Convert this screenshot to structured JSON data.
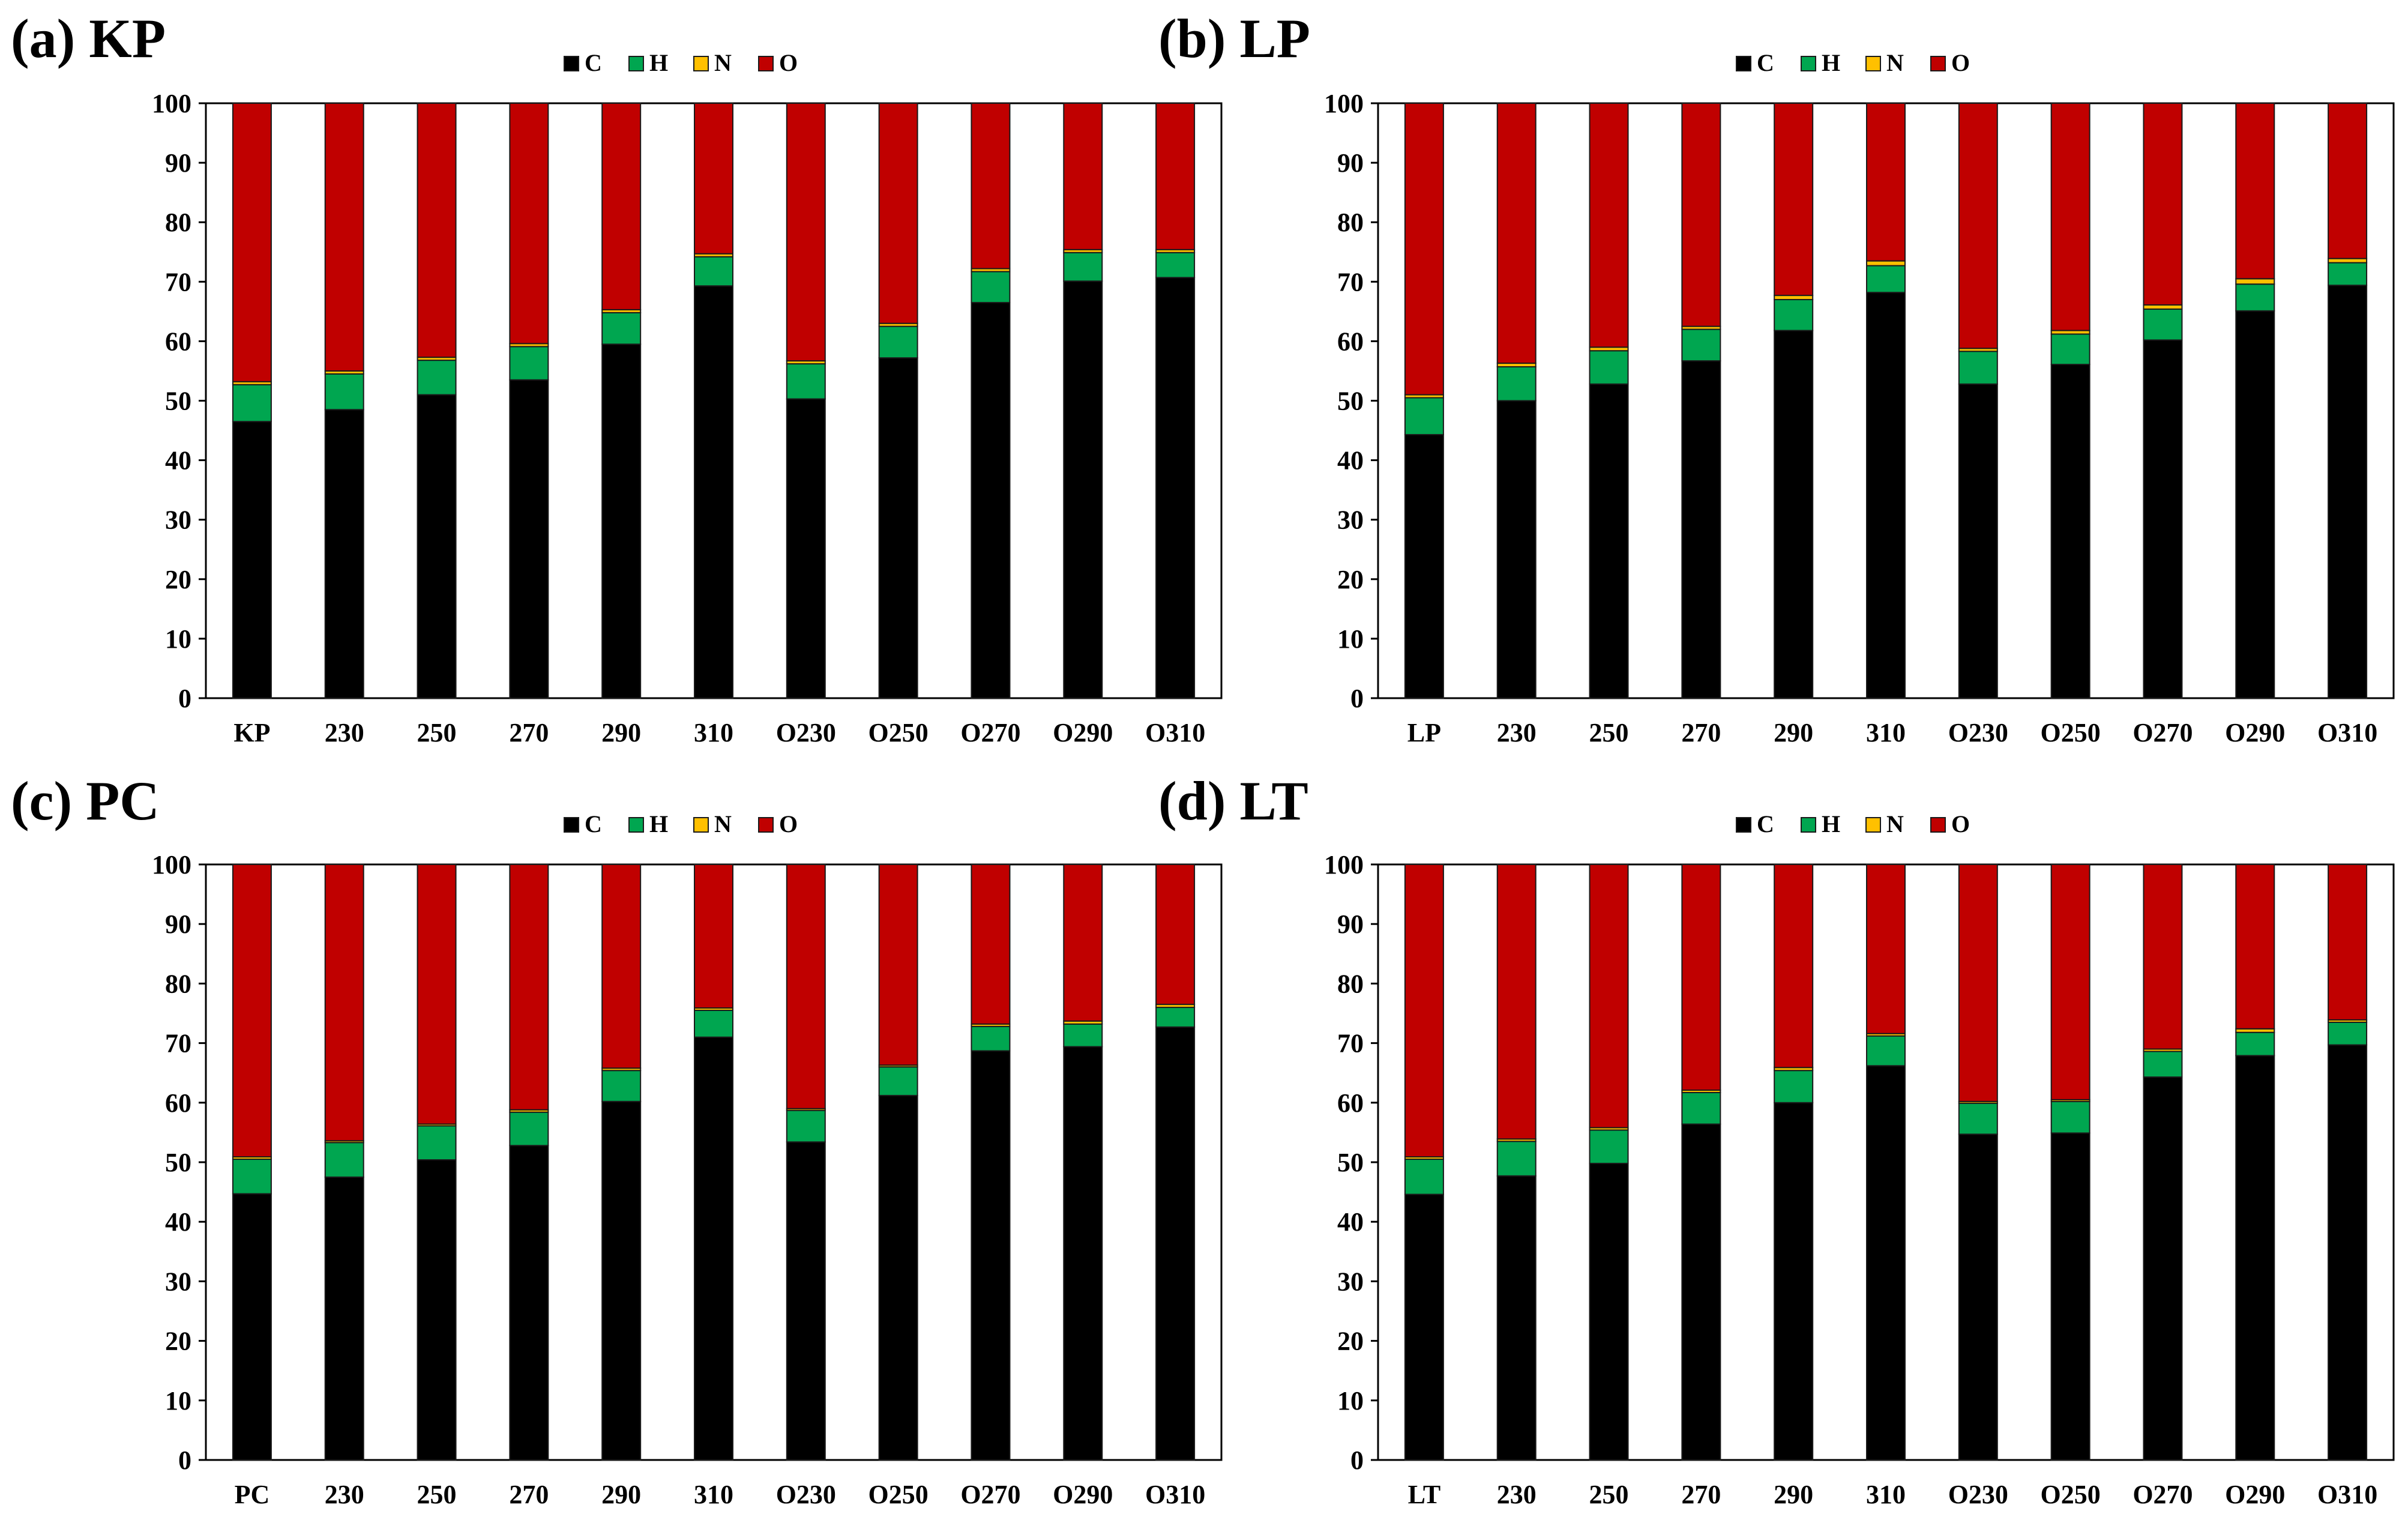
{
  "colors": {
    "C": "#000000",
    "H": "#00A650",
    "N": "#FFC000",
    "O": "#C00000"
  },
  "legend": [
    "C",
    "H",
    "N",
    "O"
  ],
  "chart_data": [
    {
      "type": "bar",
      "stacked": true,
      "title": "(a) KP",
      "categories": [
        "KP",
        "230",
        "250",
        "270",
        "290",
        "310",
        "O230",
        "O250",
        "O270",
        "O290",
        "O310"
      ],
      "ylim": [
        0,
        100
      ],
      "yticks": [
        "0",
        "10",
        "20",
        "30",
        "40",
        "50",
        "60",
        "70",
        "80",
        "90",
        "100"
      ],
      "legend_position": "top-center",
      "series": [
        {
          "name": "C",
          "values": [
            46.5,
            48.5,
            51,
            53.5,
            59.5,
            69.3,
            50.3,
            57.2,
            66.5,
            70.1,
            70.7
          ]
        },
        {
          "name": "H",
          "values": [
            6.2,
            6.0,
            5.8,
            5.6,
            5.3,
            4.9,
            5.9,
            5.3,
            5.2,
            4.8,
            4.2
          ]
        },
        {
          "name": "N",
          "values": [
            0.5,
            0.5,
            0.5,
            0.5,
            0.5,
            0.5,
            0.5,
            0.5,
            0.5,
            0.5,
            0.5
          ]
        },
        {
          "name": "O",
          "values": [
            46.8,
            45.0,
            42.7,
            40.4,
            34.7,
            25.3,
            43.3,
            37.0,
            27.8,
            24.6,
            24.6
          ]
        }
      ]
    },
    {
      "type": "bar",
      "stacked": true,
      "title": "(b) LP",
      "categories": [
        "LP",
        "230",
        "250",
        "270",
        "290",
        "310",
        "O230",
        "O250",
        "O270",
        "O290",
        "O310"
      ],
      "ylim": [
        0,
        100
      ],
      "yticks": [
        "0",
        "10",
        "20",
        "30",
        "40",
        "50",
        "60",
        "70",
        "80",
        "90",
        "100"
      ],
      "legend_position": "top-center",
      "series": [
        {
          "name": "C",
          "values": [
            44.3,
            50,
            52.8,
            56.7,
            61.8,
            68.2,
            52.8,
            56.1,
            60.2,
            65.1,
            69.4
          ]
        },
        {
          "name": "H",
          "values": [
            6.2,
            5.7,
            5.6,
            5.3,
            5.2,
            4.5,
            5.5,
            5.1,
            5.2,
            4.5,
            3.8
          ]
        },
        {
          "name": "N",
          "values": [
            0.5,
            0.6,
            0.6,
            0.5,
            0.7,
            0.8,
            0.5,
            0.6,
            0.7,
            0.9,
            0.7
          ]
        },
        {
          "name": "O",
          "values": [
            49.0,
            43.7,
            41.0,
            37.5,
            32.3,
            26.5,
            41.2,
            38.2,
            33.9,
            29.5,
            26.1
          ]
        }
      ]
    },
    {
      "type": "bar",
      "stacked": true,
      "title": "(c) PC",
      "categories": [
        "PC",
        "230",
        "250",
        "270",
        "290",
        "310",
        "O230",
        "O250",
        "O270",
        "O290",
        "O310"
      ],
      "ylim": [
        0,
        100
      ],
      "yticks": [
        "0",
        "10",
        "20",
        "30",
        "40",
        "50",
        "60",
        "70",
        "80",
        "90",
        "100"
      ],
      "legend_position": "top-center",
      "series": [
        {
          "name": "C",
          "values": [
            44.7,
            47.5,
            50.4,
            52.8,
            60.2,
            71,
            53.4,
            61.2,
            68.7,
            69.4,
            72.7
          ]
        },
        {
          "name": "H",
          "values": [
            5.8,
            5.8,
            5.7,
            5.6,
            5.2,
            4.5,
            5.3,
            4.8,
            4.1,
            3.8,
            3.3
          ]
        },
        {
          "name": "N",
          "values": [
            0.4,
            0.3,
            0.3,
            0.4,
            0.4,
            0.4,
            0.3,
            0.3,
            0.4,
            0.5,
            0.5
          ]
        },
        {
          "name": "O",
          "values": [
            49.1,
            46.4,
            43.6,
            41.2,
            34.2,
            24.1,
            41.0,
            33.7,
            26.8,
            26.3,
            23.5
          ]
        }
      ]
    },
    {
      "type": "bar",
      "stacked": true,
      "title": "(d) LT",
      "categories": [
        "LT",
        "230",
        "250",
        "270",
        "290",
        "310",
        "O230",
        "O250",
        "O270",
        "O290",
        "O310"
      ],
      "ylim": [
        0,
        100
      ],
      "yticks": [
        "0",
        "10",
        "20",
        "30",
        "40",
        "50",
        "60",
        "70",
        "80",
        "90",
        "100"
      ],
      "legend_position": "top-center",
      "series": [
        {
          "name": "C",
          "values": [
            44.6,
            47.7,
            49.8,
            56.4,
            60.0,
            66.2,
            54.7,
            54.9,
            64.3,
            67.9,
            69.7
          ]
        },
        {
          "name": "H",
          "values": [
            5.9,
            5.8,
            5.6,
            5.3,
            5.4,
            5.0,
            5.2,
            5.3,
            4.3,
            3.9,
            3.8
          ]
        },
        {
          "name": "N",
          "values": [
            0.4,
            0.4,
            0.4,
            0.4,
            0.5,
            0.4,
            0.3,
            0.3,
            0.4,
            0.6,
            0.4
          ]
        },
        {
          "name": "O",
          "values": [
            49.1,
            46.1,
            44.2,
            37.9,
            34.1,
            28.4,
            39.8,
            39.5,
            31.0,
            27.6,
            26.1
          ]
        }
      ]
    }
  ]
}
